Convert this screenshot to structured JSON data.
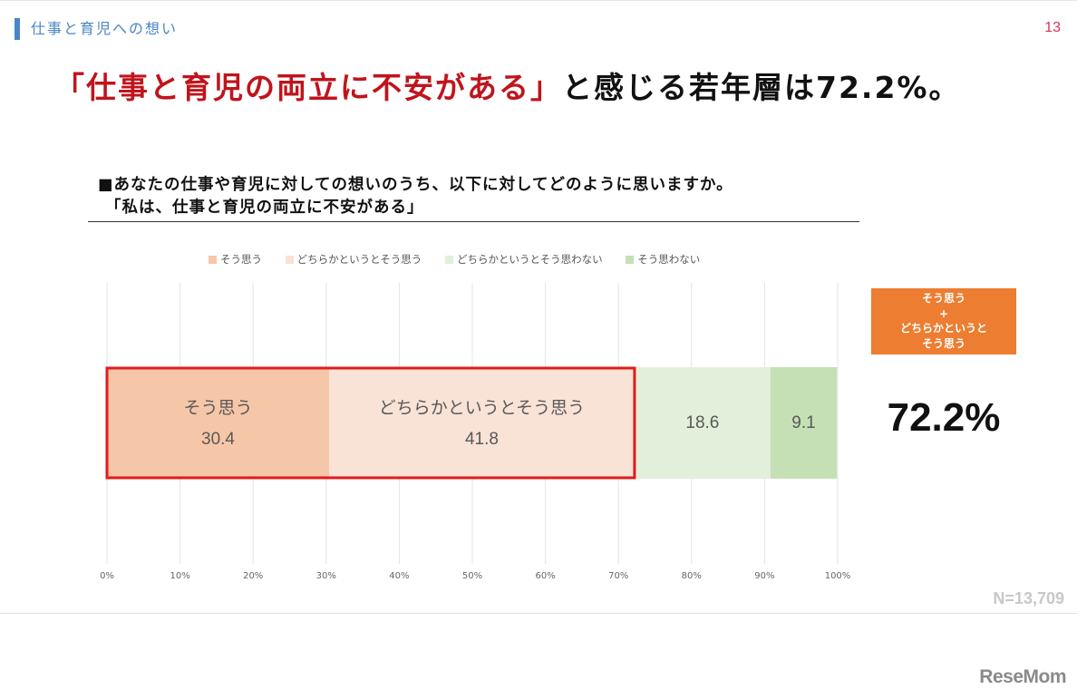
{
  "section_label": "仕事と育児への想い",
  "page_number": "13",
  "headline": {
    "highlight": "「仕事と育児の両立に不安がある」",
    "rest": "と感じる若年層は72.2%。"
  },
  "question": {
    "line1": "■あなたの仕事や育児に対しての想いのうち、以下に対してどのように思いますか。",
    "line2": "「私は、仕事と育児の両立に不安がある」"
  },
  "colors": {
    "agree": "#f6c6a8",
    "somewhat_agree": "#f9e2d6",
    "somewhat_disagree": "#e2efda",
    "disagree": "#c5e0b4",
    "highlight_border": "#e21b1b",
    "callout": "#ed7d31"
  },
  "chart_data": {
    "type": "bar",
    "orientation": "horizontal",
    "stacked": true,
    "categories": [
      "私は、仕事と育児の両立に不安がある"
    ],
    "series": [
      {
        "name": "そう思う",
        "values": [
          30.4
        ]
      },
      {
        "name": "どちらかというとそう思う",
        "values": [
          41.8
        ]
      },
      {
        "name": "どちらかというとそう思わない",
        "values": [
          18.6
        ]
      },
      {
        "name": "そう思わない",
        "values": [
          9.1
        ]
      }
    ],
    "xlim": [
      0,
      100
    ],
    "x_ticks": [
      "0%",
      "10%",
      "20%",
      "30%",
      "40%",
      "50%",
      "60%",
      "70%",
      "80%",
      "90%",
      "100%"
    ],
    "grid": true,
    "legend_position": "top",
    "segment_labels": [
      "そう思う",
      "どちらかというとそう思う",
      "",
      ""
    ],
    "value_labels": [
      "30.4",
      "41.8",
      "18.6",
      "9.1"
    ]
  },
  "callout": {
    "line1": "そう思う",
    "line2": "+",
    "line3": "どちらかというと",
    "line4": "そう思う",
    "value": "72.2%"
  },
  "sample_size": "N=13,709",
  "logo": "ReseMom"
}
